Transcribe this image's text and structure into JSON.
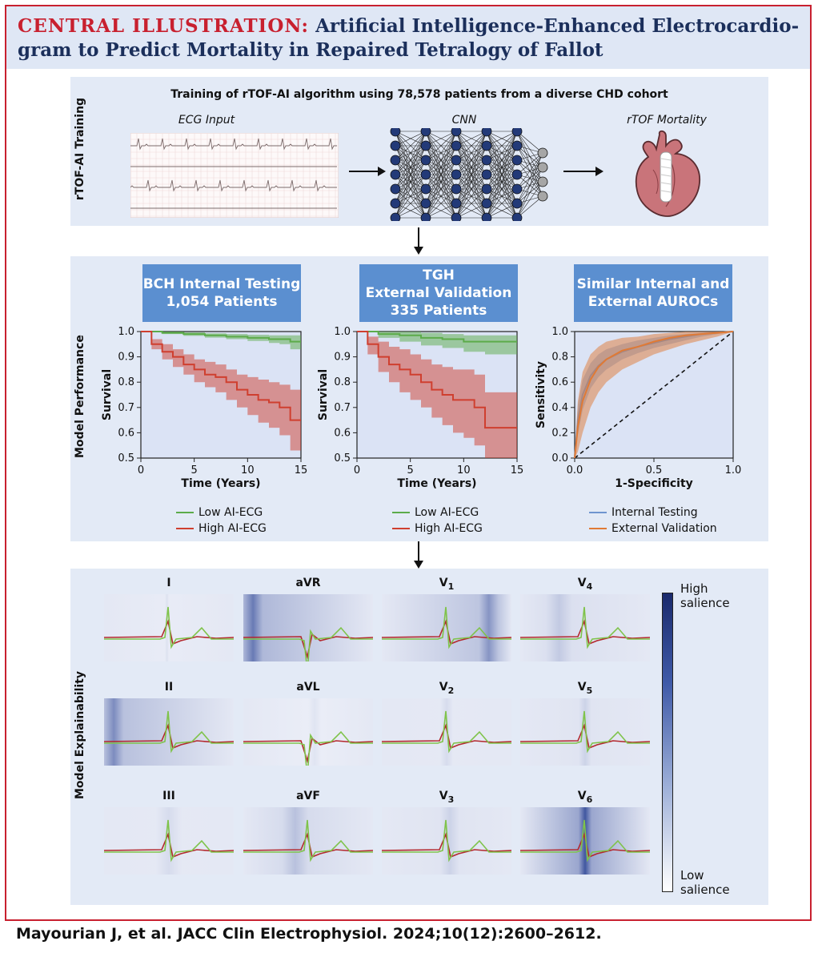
{
  "header": {
    "label": "CENTRAL ILLUSTRATION:",
    "title": "Artificial Intelligence-Enhanced Electrocardio-gram to Predict Mortality in Repaired Tetralogy of Fallot"
  },
  "training": {
    "side_label": "rTOF-AI Training",
    "heading": "Training of rTOF-AI algorithm using 78,578 patients from a diverse CHD cohort",
    "ecg_label": "ECG Input",
    "cnn_label": "CNN",
    "outcome_label": "rTOF Mortality"
  },
  "performance": {
    "side_label": "Model Performance",
    "panels": [
      {
        "box_line1": "BCH Internal Testing",
        "box_line2": "1,054 Patients",
        "box_line3": ""
      },
      {
        "box_line1": "TGH",
        "box_line2": "External Validation",
        "box_line3": "335 Patients"
      },
      {
        "box_line1": "Similar Internal and",
        "box_line2": "External AUROCs",
        "box_line3": ""
      }
    ],
    "km_legend": {
      "low": "Low AI-ECG",
      "high": "High AI-ECG"
    },
    "roc_legend": {
      "internal": "Internal Testing",
      "external": "External Validation"
    },
    "colors": {
      "low": "#5cab4a",
      "high": "#cf3f2f",
      "internal": "#6f95cf",
      "external": "#e07a35"
    }
  },
  "chart_data": [
    {
      "type": "line",
      "title": "BCH Internal Testing 1,054 Patients",
      "xlabel": "Time (Years)",
      "ylabel": "Survival",
      "xlim": [
        0,
        15
      ],
      "ylim": [
        0.5,
        1.0
      ],
      "xticks": [
        "0",
        "5",
        "10",
        "15"
      ],
      "yticks": [
        "0.5",
        "0.6",
        "0.7",
        "0.8",
        "0.9",
        "1.0"
      ],
      "series": [
        {
          "name": "Low AI-ECG",
          "x": [
            0,
            2,
            4,
            6,
            8,
            10,
            12,
            13,
            14,
            15
          ],
          "y": [
            1.0,
            0.995,
            0.99,
            0.985,
            0.98,
            0.975,
            0.97,
            0.97,
            0.96,
            0.96
          ],
          "lower": [
            1.0,
            0.99,
            0.983,
            0.976,
            0.97,
            0.963,
            0.955,
            0.95,
            0.93,
            0.92
          ],
          "upper": [
            1.0,
            1.0,
            0.997,
            0.993,
            0.99,
            0.987,
            0.985,
            0.985,
            0.985,
            0.985
          ]
        },
        {
          "name": "High AI-ECG",
          "x": [
            0,
            1,
            2,
            3,
            4,
            5,
            6,
            7,
            8,
            9,
            10,
            11,
            12,
            13,
            14,
            15
          ],
          "y": [
            1.0,
            0.95,
            0.92,
            0.9,
            0.87,
            0.85,
            0.83,
            0.82,
            0.8,
            0.77,
            0.75,
            0.73,
            0.72,
            0.7,
            0.65,
            0.65
          ],
          "lower": [
            1.0,
            0.93,
            0.89,
            0.86,
            0.83,
            0.8,
            0.78,
            0.76,
            0.73,
            0.7,
            0.67,
            0.64,
            0.62,
            0.59,
            0.53,
            0.53
          ],
          "upper": [
            1.0,
            0.97,
            0.95,
            0.93,
            0.91,
            0.89,
            0.88,
            0.87,
            0.85,
            0.83,
            0.82,
            0.81,
            0.8,
            0.79,
            0.77,
            0.77
          ]
        }
      ]
    },
    {
      "type": "line",
      "title": "TGH External Validation 335 Patients",
      "xlabel": "Time (Years)",
      "ylabel": "Survival",
      "xlim": [
        0,
        15
      ],
      "ylim": [
        0.5,
        1.0
      ],
      "xticks": [
        "0",
        "5",
        "10",
        "15"
      ],
      "yticks": [
        "0.5",
        "0.6",
        "0.7",
        "0.8",
        "0.9",
        "1.0"
      ],
      "series": [
        {
          "name": "Low AI-ECG",
          "x": [
            0,
            2,
            4,
            6,
            8,
            10,
            12,
            15
          ],
          "y": [
            1.0,
            0.99,
            0.985,
            0.975,
            0.97,
            0.96,
            0.96,
            0.96
          ],
          "lower": [
            1.0,
            0.975,
            0.96,
            0.945,
            0.935,
            0.92,
            0.91,
            0.91
          ],
          "upper": [
            1.0,
            1.0,
            1.0,
            0.995,
            0.99,
            0.985,
            0.985,
            0.985
          ]
        },
        {
          "name": "High AI-ECG",
          "x": [
            0,
            1,
            2,
            3,
            4,
            5,
            6,
            7,
            8,
            9,
            10,
            11,
            12,
            13,
            14,
            15
          ],
          "y": [
            1.0,
            0.95,
            0.9,
            0.87,
            0.85,
            0.83,
            0.8,
            0.77,
            0.75,
            0.73,
            0.73,
            0.7,
            0.62,
            0.62,
            0.62,
            0.62
          ],
          "lower": [
            1.0,
            0.91,
            0.84,
            0.8,
            0.76,
            0.73,
            0.7,
            0.66,
            0.63,
            0.6,
            0.58,
            0.55,
            0.5,
            0.5,
            0.5,
            0.5
          ],
          "upper": [
            1.0,
            0.98,
            0.96,
            0.94,
            0.93,
            0.91,
            0.89,
            0.87,
            0.86,
            0.85,
            0.85,
            0.83,
            0.76,
            0.76,
            0.76,
            0.76
          ]
        }
      ]
    },
    {
      "type": "line",
      "xlabel": "1-Specificity",
      "ylabel": "Sensitivity",
      "xlim": [
        0,
        1
      ],
      "ylim": [
        0,
        1
      ],
      "xticks": [
        "0.0",
        "0.5",
        "1.0"
      ],
      "yticks": [
        "0.0",
        "0.2",
        "0.4",
        "0.6",
        "0.8",
        "1.0"
      ],
      "reference_line": "diagonal dashed",
      "series": [
        {
          "name": "Internal Testing",
          "x": [
            0,
            0.02,
            0.05,
            0.1,
            0.15,
            0.2,
            0.3,
            0.4,
            0.5,
            0.6,
            0.7,
            0.8,
            0.9,
            1.0
          ],
          "y": [
            0,
            0.3,
            0.5,
            0.65,
            0.73,
            0.78,
            0.84,
            0.88,
            0.91,
            0.94,
            0.96,
            0.98,
            0.99,
            1.0
          ],
          "lower": [
            0,
            0.18,
            0.38,
            0.55,
            0.64,
            0.7,
            0.78,
            0.83,
            0.87,
            0.9,
            0.93,
            0.96,
            0.98,
            1.0
          ],
          "upper": [
            0,
            0.42,
            0.62,
            0.75,
            0.82,
            0.86,
            0.9,
            0.93,
            0.95,
            0.97,
            0.98,
            0.99,
            1.0,
            1.0
          ]
        },
        {
          "name": "External Validation",
          "x": [
            0,
            0.02,
            0.05,
            0.1,
            0.15,
            0.2,
            0.3,
            0.4,
            0.5,
            0.6,
            0.7,
            0.8,
            0.9,
            1.0
          ],
          "y": [
            0,
            0.25,
            0.45,
            0.62,
            0.72,
            0.78,
            0.85,
            0.88,
            0.92,
            0.95,
            0.97,
            0.98,
            0.99,
            1.0
          ],
          "lower": [
            0,
            0.05,
            0.2,
            0.4,
            0.52,
            0.6,
            0.7,
            0.76,
            0.82,
            0.86,
            0.9,
            0.93,
            0.96,
            1.0
          ],
          "upper": [
            0,
            0.45,
            0.68,
            0.82,
            0.88,
            0.92,
            0.95,
            0.96,
            0.98,
            0.99,
            1.0,
            1.0,
            1.0,
            1.0
          ]
        }
      ]
    }
  ],
  "explainability": {
    "side_label": "Model Explainability",
    "colorbar_high": [
      "High",
      "salience"
    ],
    "colorbar_low": [
      "Low",
      "salience"
    ],
    "colorbar_colors": [
      "#ffffff",
      "#1a2a6c"
    ],
    "leads": [
      {
        "name": "I",
        "sub": ""
      },
      {
        "name": "aVR",
        "sub": ""
      },
      {
        "name": "V",
        "sub": "1"
      },
      {
        "name": "V",
        "sub": "4"
      },
      {
        "name": "II",
        "sub": ""
      },
      {
        "name": "aVL",
        "sub": ""
      },
      {
        "name": "V",
        "sub": "2"
      },
      {
        "name": "V",
        "sub": "5"
      },
      {
        "name": "III",
        "sub": ""
      },
      {
        "name": "aVF",
        "sub": ""
      },
      {
        "name": "V",
        "sub": "3"
      },
      {
        "name": "V",
        "sub": "6"
      }
    ]
  },
  "citation": "Mayourian J, et al. JACC Clin Electrophysiol. 2024;10(12):2600–2612."
}
